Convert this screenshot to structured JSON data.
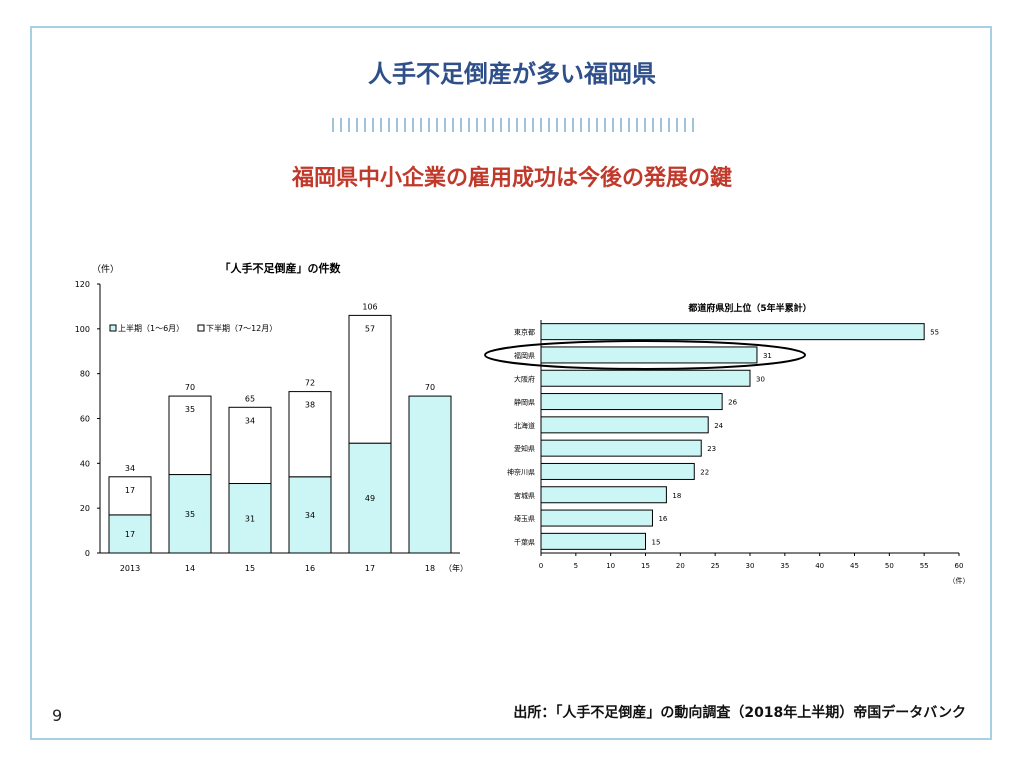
{
  "slide": {
    "title": "人手不足倒産が多い福岡県",
    "subtitle": "福岡県中小企業の雇用成功は今後の発展の鍵",
    "page_number": "9",
    "source": "出所：「人手不足倒産」の動向調査（2018年上半期）帝国データバンク"
  },
  "chart_data": [
    {
      "type": "bar",
      "stacked": true,
      "title": "「人手不足倒産」の件数",
      "ylabel": "（件）",
      "xlabel": "（年）",
      "ylim": [
        0,
        120
      ],
      "yticks": [
        0,
        20,
        40,
        60,
        80,
        100,
        120
      ],
      "categories": [
        "2013",
        "14",
        "15",
        "16",
        "17",
        "18"
      ],
      "series": [
        {
          "name": "上半期（1～6月）",
          "values": [
            17,
            35,
            31,
            34,
            49,
            70
          ],
          "color": "#ccf6f6"
        },
        {
          "name": "下半期（7～12月）",
          "values": [
            17,
            35,
            34,
            38,
            57,
            null
          ],
          "color": "#ffffff"
        }
      ],
      "totals": [
        34,
        70,
        65,
        72,
        106,
        70
      ],
      "legend": "top-left"
    },
    {
      "type": "bar",
      "orientation": "horizontal",
      "title": "都道府県別上位（5年半累計）",
      "xlabel": "（件）",
      "xlim": [
        0,
        60
      ],
      "xticks": [
        0,
        5,
        10,
        15,
        20,
        25,
        30,
        35,
        40,
        45,
        50,
        55,
        60
      ],
      "categories": [
        "東京都",
        "福岡県",
        "大阪府",
        "静岡県",
        "北海道",
        "愛知県",
        "神奈川県",
        "宮城県",
        "埼玉県",
        "千葉県"
      ],
      "values": [
        55,
        31,
        30,
        26,
        24,
        23,
        22,
        18,
        16,
        15
      ],
      "color": "#ccf6f6",
      "highlight": "福岡県"
    }
  ]
}
